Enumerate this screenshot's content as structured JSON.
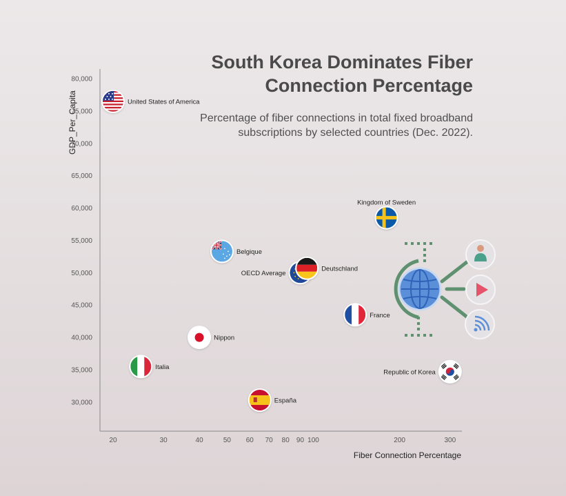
{
  "chart_data": {
    "type": "scatter",
    "title": "South Korea Dominates Fiber Connection Percentage",
    "subtitle": "Percentage of fiber connections in total fixed broadband subscriptions by selected countries (Dec. 2022).",
    "xlabel": "Fiber Connection Percentage",
    "ylabel": "GDP_Per_Capita",
    "x_scale": "log",
    "xlim": [
      18,
      330
    ],
    "ylim": [
      25500,
      81500
    ],
    "x_ticks": [
      20,
      30,
      40,
      50,
      60,
      70,
      80,
      90,
      100,
      200,
      300
    ],
    "y_ticks": [
      30000,
      35000,
      40000,
      45000,
      50000,
      55000,
      60000,
      65000,
      70000,
      75000,
      80000
    ],
    "y_tick_labels": [
      "30,000",
      "35,000",
      "40,000",
      "45,000",
      "50,000",
      "55,000",
      "60,000",
      "65,000",
      "70,000",
      "75,000",
      "80,000"
    ],
    "grid": false,
    "points": [
      {
        "label": "United States of America",
        "x": 20,
        "y": 76500,
        "flag": "us",
        "label_side": "right"
      },
      {
        "label": "Kingdom of Sweden",
        "x": 180,
        "y": 58500,
        "flag": "se",
        "label_side": "top"
      },
      {
        "label": "Belgique",
        "x": 48,
        "y": 53300,
        "flag": "be",
        "label_side": "right"
      },
      {
        "label": "OECD Average",
        "x": 90,
        "y": 50000,
        "flag": "oecd",
        "label_side": "left"
      },
      {
        "label": "Deutschland",
        "x": 95,
        "y": 50700,
        "flag": "de",
        "label_side": "right"
      },
      {
        "label": "France",
        "x": 140,
        "y": 43500,
        "flag": "fr",
        "label_side": "right"
      },
      {
        "label": "Nippon",
        "x": 40,
        "y": 40000,
        "flag": "jp",
        "label_side": "right"
      },
      {
        "label": "Italia",
        "x": 25,
        "y": 35500,
        "flag": "it",
        "label_side": "right"
      },
      {
        "label": "Republic of Korea",
        "x": 300,
        "y": 34700,
        "flag": "kr",
        "label_side": "left"
      },
      {
        "label": "España",
        "x": 65,
        "y": 30300,
        "flag": "es",
        "label_side": "right"
      }
    ]
  },
  "colors": {
    "axis": "#8a8a8a",
    "illustration_green": "#5f9070",
    "globe_blue": "#5b8fd8",
    "icon_circle": "#e4e2e4"
  },
  "illustration": {
    "icons": [
      "globe-icon",
      "user-icon",
      "play-icon",
      "wifi-icon"
    ]
  }
}
